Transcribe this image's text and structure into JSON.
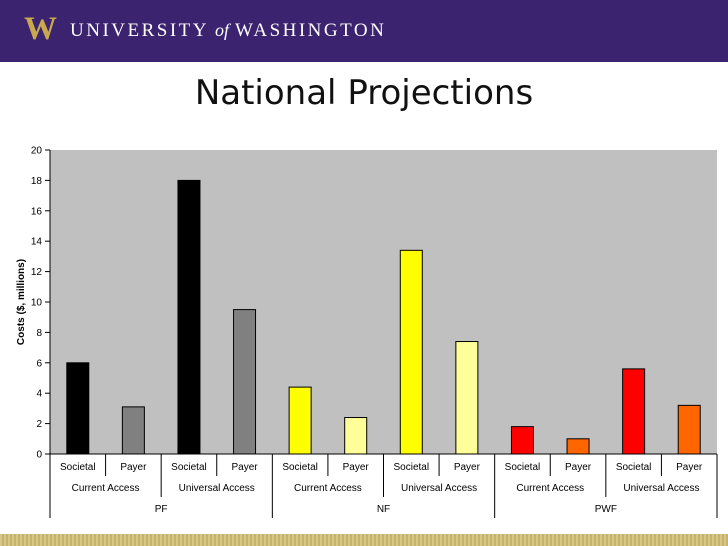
{
  "header": {
    "logo_letter": "W",
    "university_pre": "UNIVERSITY",
    "university_of": "of",
    "university_post": "WASHINGTON"
  },
  "slide": {
    "title": "National Projections"
  },
  "colors": {
    "banner": "#3b2370",
    "gold": "#c9a94c",
    "plot_bg": "#c0c0c0"
  },
  "chart_data": {
    "type": "bar",
    "ylabel": "Costs ($, millions)",
    "xlabel": "",
    "ylim": [
      0,
      20
    ],
    "yticks": [
      0,
      2,
      4,
      6,
      8,
      10,
      12,
      14,
      16,
      18,
      20
    ],
    "grid": false,
    "bars": [
      {
        "label": "Societal",
        "access": "Current Access",
        "group": "PF",
        "value": 6.0,
        "color": "#000000"
      },
      {
        "label": "Payer",
        "access": "Current Access",
        "group": "PF",
        "value": 3.1,
        "color": "#808080"
      },
      {
        "label": "Societal",
        "access": "Universal Access",
        "group": "PF",
        "value": 18.0,
        "color": "#000000"
      },
      {
        "label": "Payer",
        "access": "Universal Access",
        "group": "PF",
        "value": 9.5,
        "color": "#808080"
      },
      {
        "label": "Societal",
        "access": "Current Access",
        "group": "NF",
        "value": 4.4,
        "color": "#ffff00"
      },
      {
        "label": "Payer",
        "access": "Current Access",
        "group": "NF",
        "value": 2.4,
        "color": "#ffff99"
      },
      {
        "label": "Societal",
        "access": "Universal Access",
        "group": "NF",
        "value": 13.4,
        "color": "#ffff00"
      },
      {
        "label": "Payer",
        "access": "Universal Access",
        "group": "NF",
        "value": 7.4,
        "color": "#ffff99"
      },
      {
        "label": "Societal",
        "access": "Current Access",
        "group": "PWF",
        "value": 1.8,
        "color": "#ff0000"
      },
      {
        "label": "Payer",
        "access": "Current Access",
        "group": "PWF",
        "value": 1.0,
        "color": "#ff6600"
      },
      {
        "label": "Societal",
        "access": "Universal Access",
        "group": "PWF",
        "value": 5.6,
        "color": "#ff0000"
      },
      {
        "label": "Payer",
        "access": "Universal Access",
        "group": "PWF",
        "value": 3.2,
        "color": "#ff6600"
      }
    ],
    "access_labels": [
      "Current Access",
      "Universal Access",
      "Current Access",
      "Universal Access",
      "Current Access",
      "Universal Access"
    ],
    "groups": [
      "PF",
      "NF",
      "PWF"
    ]
  }
}
